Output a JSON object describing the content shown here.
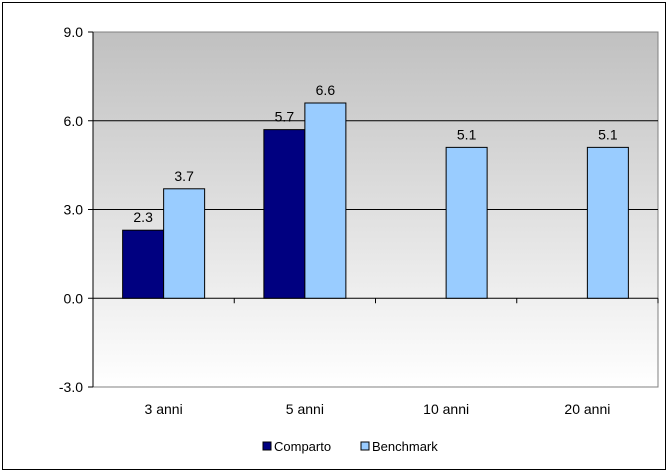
{
  "chart_data": {
    "type": "bar",
    "title": "",
    "xlabel": "",
    "ylabel": "",
    "categories": [
      "3 anni",
      "5 anni",
      "10 anni",
      "20 anni"
    ],
    "series": [
      {
        "name": "Comparto",
        "values": [
          2.3,
          5.7,
          null,
          null
        ],
        "labels": [
          "2.3",
          "5.7",
          "",
          ""
        ]
      },
      {
        "name": "Benchmark",
        "values": [
          3.7,
          6.6,
          5.1,
          5.1
        ],
        "labels": [
          "3.7",
          "6.6",
          "5.1",
          "5.1"
        ]
      }
    ],
    "ylim": [
      -3.0,
      9.0
    ],
    "yticks": [
      -3.0,
      0.0,
      3.0,
      6.0,
      9.0
    ],
    "ytick_labels": [
      "-3.0",
      "0.0",
      "3.0",
      "6.0",
      "9.0"
    ],
    "grid": true,
    "legend_position": "bottom",
    "colors": {
      "Comparto": "#000080",
      "Benchmark": "#99CCFF",
      "plot_gradient_top": "#C0C0C0",
      "plot_gradient_bottom": "#FFFFFF",
      "bar_outline": "#000000"
    }
  }
}
